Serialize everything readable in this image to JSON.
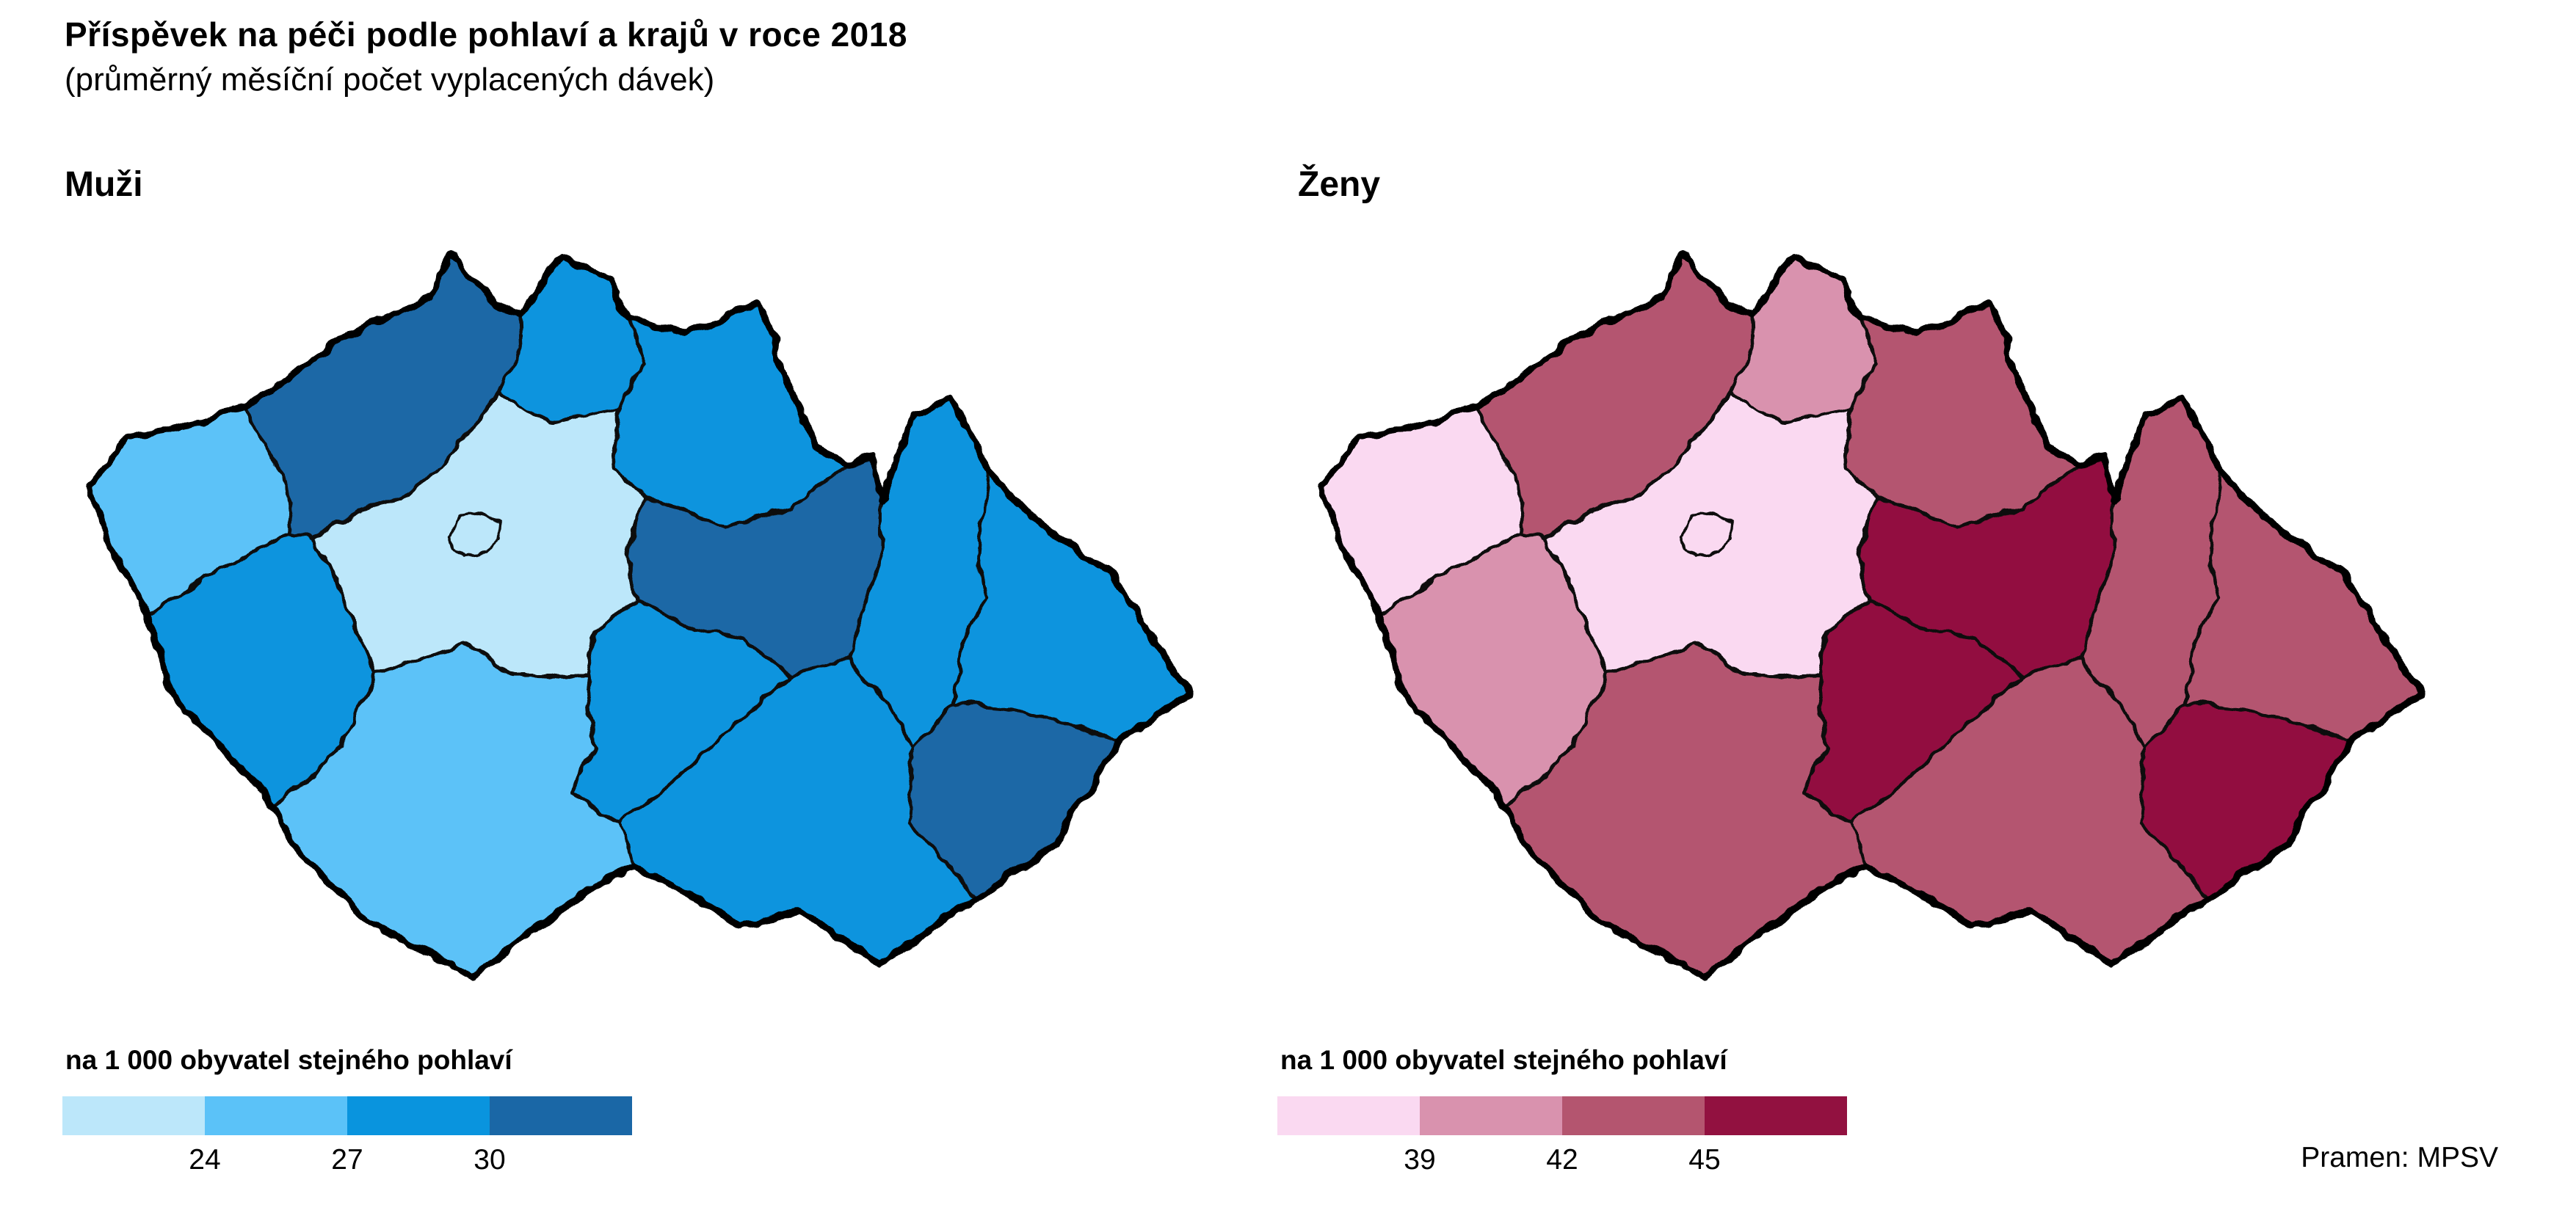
{
  "chart_data": {
    "type": "choropleth",
    "title": "Příspěvek na péči podle pohlaví a krajů v roce 2018",
    "subtitle": "(průměrný měsíční počet vyplacených dávek)",
    "source": "Pramen: MPSV",
    "layout_hint": "two maps side by side, color bar legend below each, no axes, no grid",
    "maps": [
      {
        "id": "muzi",
        "label": "Muži",
        "legend_title": "na 1 000 obyvatel stejného pohlaví",
        "breaks": [
          "24",
          "27",
          "30"
        ],
        "class_ranges": [
          "< 24",
          "24–27",
          "27–30",
          "> 30"
        ],
        "palette": [
          "#BCE7FA",
          "#5BC2F8",
          "#0994DE",
          "#1A67A6"
        ],
        "region_classes": {
          "praha": 1,
          "stredocesky": 1,
          "karlovarsky": 2,
          "jihocesky": 2,
          "plzensky": 3,
          "liberecky": 3,
          "kralovehradecky": 3,
          "vysocina": 3,
          "jihomoravsky": 3,
          "olomoucky": 3,
          "moravskoslezsky": 3,
          "ustecky": 4,
          "pardubicky": 4,
          "zlinsky": 4
        }
      },
      {
        "id": "zeny",
        "label": "Ženy",
        "legend_title": "na 1 000 obyvatel stejného pohlaví",
        "breaks": [
          "39",
          "42",
          "45"
        ],
        "class_ranges": [
          "< 39",
          "39–42",
          "42–45",
          "> 45"
        ],
        "palette": [
          "#FAD9F1",
          "#D992AE",
          "#B4556F",
          "#921140"
        ],
        "region_classes": {
          "praha": 1,
          "stredocesky": 1,
          "karlovarsky": 1,
          "plzensky": 2,
          "liberecky": 2,
          "ustecky": 3,
          "jihocesky": 3,
          "kralovehradecky": 3,
          "jihomoravsky": 3,
          "olomoucky": 3,
          "moravskoslezsky": 3,
          "pardubicky": 4,
          "vysocina": 4,
          "zlinsky": 4
        }
      }
    ],
    "border_color": "#000000",
    "background_color": "#ffffff"
  }
}
